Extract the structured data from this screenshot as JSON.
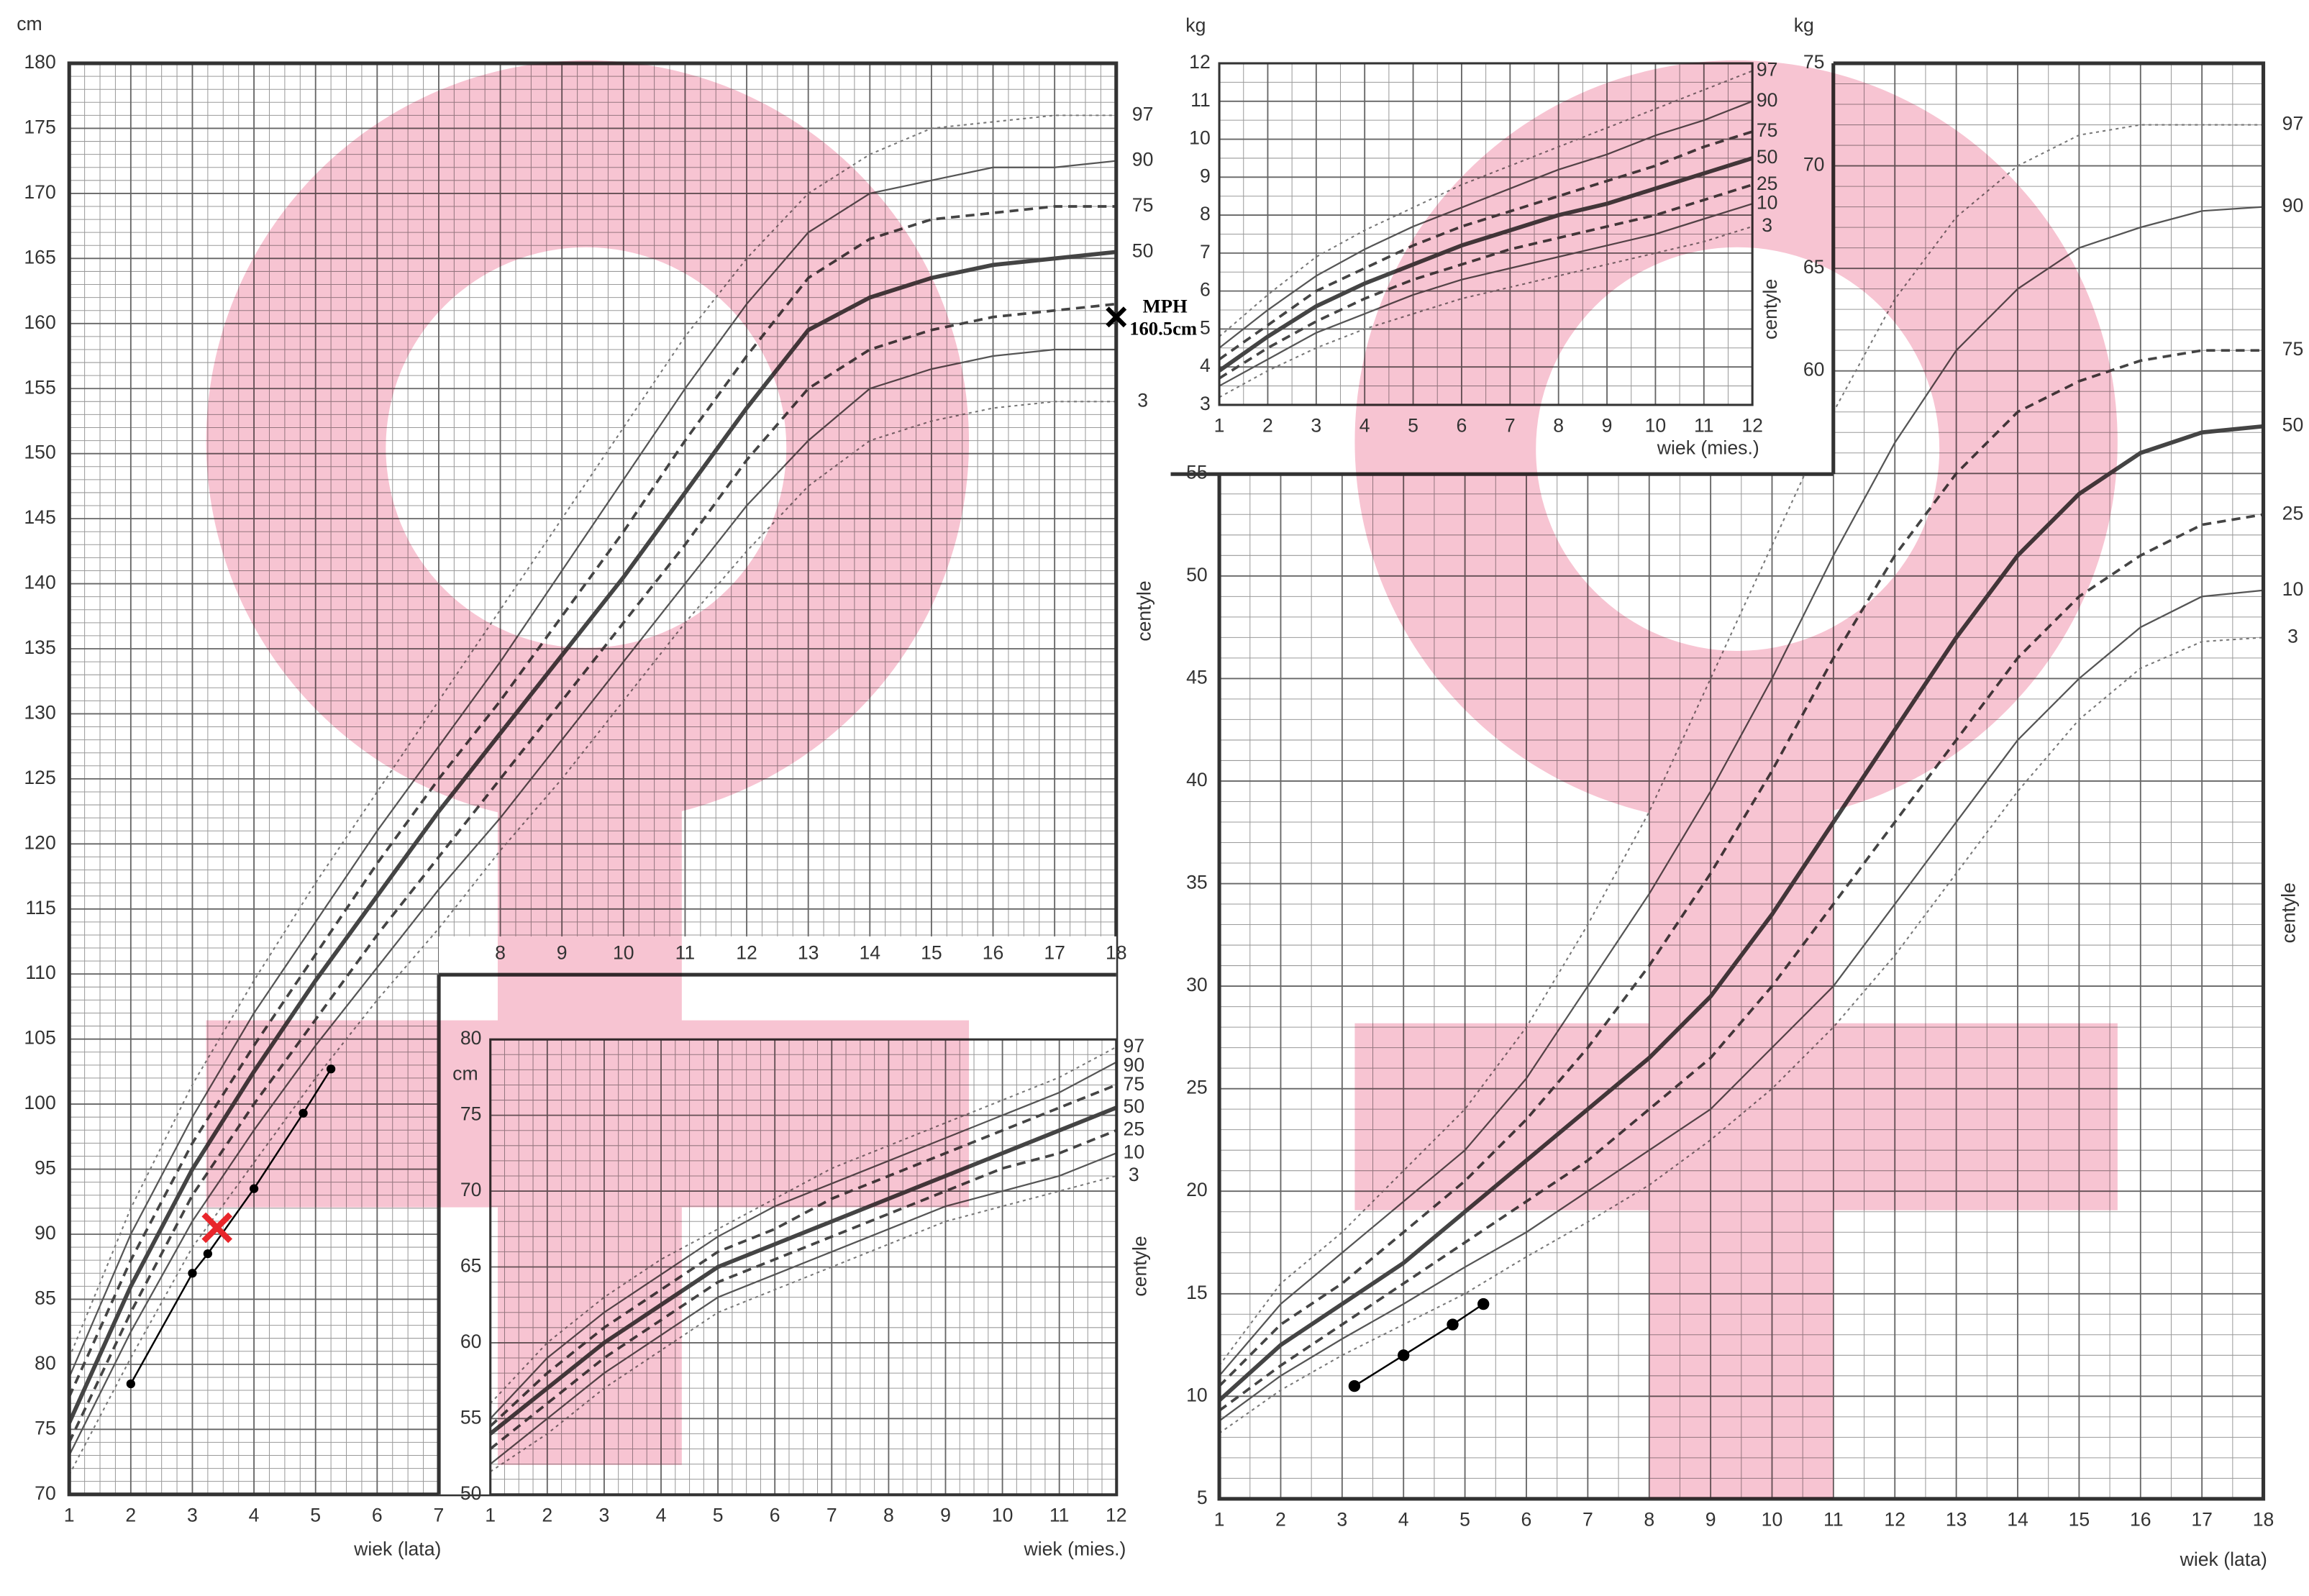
{
  "chart_data": [
    {
      "type": "line",
      "y_unit": "cm",
      "x_label": "wiek (lata)",
      "side_label": "centyle",
      "xlim": [
        1,
        18
      ],
      "ylim": [
        70,
        180
      ],
      "xticks": [
        1,
        2,
        3,
        4,
        5,
        6,
        7,
        8,
        9,
        10,
        11,
        12,
        13,
        14,
        15,
        16,
        17,
        18
      ],
      "yticks": [
        70,
        75,
        80,
        85,
        90,
        95,
        100,
        105,
        110,
        115,
        120,
        125,
        130,
        135,
        140,
        145,
        150,
        155,
        160,
        165,
        170,
        175,
        180
      ],
      "grid": true,
      "x": [
        1,
        2,
        3,
        4,
        5,
        6,
        7,
        8,
        9,
        10,
        11,
        12,
        13,
        14,
        15,
        16,
        17,
        18
      ],
      "series": [
        {
          "name": "97",
          "style": "dotted",
          "color": "#777",
          "values": [
            80.5,
            92,
            101.5,
            109.5,
            117,
            124,
            131,
            138,
            145,
            152,
            159,
            165,
            170,
            173,
            175,
            175.5,
            176,
            176
          ]
        },
        {
          "name": "90",
          "style": "solid",
          "color": "#555",
          "values": [
            79,
            90,
            99,
            107,
            114,
            121,
            127.5,
            134,
            141,
            148,
            155,
            161.5,
            167,
            170,
            171,
            172,
            172,
            172.5
          ]
        },
        {
          "name": "75",
          "style": "dashed",
          "color": "#444",
          "values": [
            77.5,
            88,
            97,
            104.5,
            111.5,
            118.5,
            125,
            131,
            137.5,
            144,
            151,
            157.5,
            163.5,
            166.5,
            168,
            168.5,
            169,
            169
          ]
        },
        {
          "name": "50",
          "style": "bold",
          "color": "#444",
          "values": [
            75.5,
            86,
            95,
            102.5,
            109.5,
            116,
            122.5,
            128.5,
            134.5,
            140.5,
            147,
            153.5,
            159.5,
            162,
            163.5,
            164.5,
            165,
            165.5
          ]
        },
        {
          "style": "dashed",
          "color": "#444",
          "values": [
            74,
            84,
            93,
            100,
            106.5,
            113,
            119,
            125,
            131,
            137,
            143,
            149.5,
            155,
            158,
            159.5,
            160.5,
            161,
            161.5
          ]
        },
        {
          "style": "solid",
          "color": "#555",
          "values": [
            73,
            82.5,
            91,
            98,
            104.5,
            110.5,
            116.5,
            122,
            128,
            134,
            140,
            146,
            151,
            155,
            156.5,
            157.5,
            158,
            158
          ]
        },
        {
          "name": "3",
          "style": "dotted",
          "color": "#777",
          "values": [
            71.5,
            80.5,
            89,
            95.5,
            102,
            108,
            113.5,
            119.5,
            125,
            131,
            137,
            142.5,
            147.5,
            151,
            152.5,
            153.5,
            154,
            154
          ]
        }
      ],
      "patient": {
        "color": "#000",
        "x": [
          2,
          3,
          3.25,
          4,
          4.8,
          5.25
        ],
        "values": [
          78.5,
          87,
          88.5,
          93.5,
          99.3,
          102.7
        ]
      },
      "markers": [
        {
          "x": 3.4,
          "y": 90.5,
          "color": "#e8262b"
        },
        {
          "x": 18,
          "y": 160.5,
          "color": "#000",
          "label": "MPH",
          "value_label": "160.5cm"
        }
      ]
    },
    {
      "type": "line",
      "y_unit": "cm",
      "x_label": "wiek (mies.)",
      "side_label": "centyle",
      "xlim": [
        1,
        12
      ],
      "ylim": [
        50,
        80
      ],
      "xticks": [
        1,
        2,
        3,
        4,
        5,
        6,
        7,
        8,
        9,
        10,
        11,
        12
      ],
      "yticks": [
        50,
        55,
        60,
        65,
        70,
        75,
        80
      ],
      "grid": true,
      "x": [
        1,
        2,
        3,
        4,
        5,
        6,
        7,
        8,
        9,
        10,
        11,
        12
      ],
      "series": [
        {
          "name": "97",
          "style": "dotted",
          "color": "#777",
          "values": [
            56,
            60,
            63,
            65.5,
            67.5,
            69.5,
            71.5,
            73,
            74.5,
            76,
            77.5,
            79.5
          ]
        },
        {
          "name": "90",
          "style": "solid",
          "color": "#555",
          "values": [
            55,
            59,
            62,
            64.5,
            67,
            69,
            70.5,
            72,
            73.5,
            75,
            76.5,
            78.5
          ]
        },
        {
          "name": "75",
          "style": "dashed",
          "color": "#444",
          "values": [
            54.5,
            58,
            61,
            63.5,
            66,
            67.5,
            69.5,
            71,
            72.5,
            74,
            75.5,
            77
          ]
        },
        {
          "name": "50",
          "style": "bold",
          "color": "#444",
          "values": [
            54,
            57,
            60,
            62.5,
            65,
            66.5,
            68,
            69.5,
            71,
            72.5,
            74,
            75.5
          ]
        },
        {
          "name": "25",
          "style": "dashed",
          "color": "#444",
          "values": [
            53,
            56,
            59,
            61.5,
            64,
            65.5,
            67,
            68.5,
            70,
            71.5,
            72.5,
            74
          ]
        },
        {
          "name": "10",
          "style": "solid",
          "color": "#555",
          "values": [
            52,
            55,
            58,
            60.5,
            63,
            64.5,
            66,
            67.5,
            69,
            70,
            71,
            72.5
          ]
        },
        {
          "name": "3",
          "style": "dotted",
          "color": "#777",
          "values": [
            51.5,
            54,
            57,
            59.5,
            62,
            63.5,
            65,
            66.5,
            68,
            69,
            70,
            71
          ]
        }
      ]
    },
    {
      "type": "line",
      "y_unit": "kg",
      "x_label": "wiek (lata)",
      "side_label": "centyle",
      "xlim": [
        1,
        18
      ],
      "ylim": [
        5,
        75
      ],
      "xticks": [
        1,
        2,
        3,
        4,
        5,
        6,
        7,
        8,
        9,
        10,
        11,
        12,
        13,
        14,
        15,
        16,
        17,
        18
      ],
      "yticks": [
        5,
        10,
        15,
        20,
        25,
        30,
        35,
        40,
        45,
        50,
        55,
        60,
        65,
        70,
        75
      ],
      "grid": true,
      "x": [
        1,
        2,
        3,
        4,
        5,
        6,
        7,
        8,
        9,
        10,
        11,
        12,
        13,
        14,
        15,
        16,
        17,
        18
      ],
      "series": [
        {
          "name": "97",
          "style": "dotted",
          "color": "#777",
          "values": [
            11.5,
            15.5,
            18,
            21,
            24,
            28,
            33,
            38.5,
            45,
            51.5,
            58,
            63.5,
            67.5,
            70,
            71.5,
            72,
            72,
            72
          ]
        },
        {
          "name": "90",
          "style": "solid",
          "color": "#555",
          "values": [
            11,
            14.5,
            17,
            19.5,
            22,
            25.5,
            30,
            34.5,
            39.5,
            45,
            51,
            56.5,
            61,
            64,
            66,
            67,
            67.8,
            68
          ]
        },
        {
          "name": "75",
          "style": "dashed",
          "color": "#444",
          "values": [
            10.5,
            13.5,
            15.5,
            18,
            20.5,
            23.5,
            27,
            31,
            35.5,
            40.5,
            46,
            51,
            55,
            58,
            59.5,
            60.5,
            61,
            61
          ]
        },
        {
          "name": "50",
          "style": "bold",
          "color": "#444",
          "values": [
            9.8,
            12.5,
            14.5,
            16.5,
            19,
            21.5,
            24,
            26.5,
            29.5,
            33.5,
            38,
            42.5,
            47,
            51,
            54,
            56,
            57,
            57.3
          ]
        },
        {
          "name": "25",
          "style": "dashed",
          "color": "#444",
          "values": [
            9.3,
            11.5,
            13.5,
            15.5,
            17.5,
            19.5,
            21.5,
            24,
            26.5,
            30,
            34,
            38,
            42,
            46,
            49,
            51,
            52.5,
            53
          ]
        },
        {
          "name": "10",
          "style": "solid",
          "color": "#555",
          "values": [
            8.8,
            11,
            12.8,
            14.5,
            16.3,
            18,
            20,
            22,
            24,
            27,
            30,
            34,
            38,
            42,
            45,
            47.5,
            49,
            49.3
          ]
        },
        {
          "name": "3",
          "style": "dotted",
          "color": "#777",
          "values": [
            8.2,
            10.3,
            12,
            13.5,
            15,
            16.8,
            18.5,
            20.3,
            22.5,
            25,
            28,
            31.5,
            35.5,
            39.5,
            43,
            45.5,
            46.8,
            47
          ]
        }
      ],
      "patient": {
        "color": "#000",
        "x": [
          3.2,
          4,
          4.8,
          5.3
        ],
        "values": [
          10.5,
          12,
          13.5,
          14.5
        ]
      }
    },
    {
      "type": "line",
      "y_unit": "kg",
      "x_label": "wiek (mies.)",
      "side_label": "centyle",
      "xlim": [
        1,
        12
      ],
      "ylim": [
        3,
        12
      ],
      "xticks": [
        1,
        2,
        3,
        4,
        5,
        6,
        7,
        8,
        9,
        10,
        11,
        12
      ],
      "yticks": [
        3,
        4,
        5,
        6,
        7,
        8,
        9,
        10,
        11,
        12
      ],
      "grid": true,
      "x": [
        1,
        2,
        3,
        4,
        5,
        6,
        7,
        8,
        9,
        10,
        11,
        12
      ],
      "series": [
        {
          "name": "97",
          "style": "dotted",
          "color": "#777",
          "values": [
            4.8,
            5.9,
            6.9,
            7.6,
            8.2,
            8.8,
            9.3,
            9.8,
            10.3,
            10.8,
            11.3,
            11.8
          ]
        },
        {
          "name": "90",
          "style": "solid",
          "color": "#555",
          "values": [
            4.5,
            5.5,
            6.4,
            7.1,
            7.7,
            8.2,
            8.7,
            9.2,
            9.6,
            10.1,
            10.5,
            11
          ]
        },
        {
          "name": "75",
          "style": "dashed",
          "color": "#444",
          "values": [
            4.2,
            5.1,
            6,
            6.6,
            7.2,
            7.7,
            8.1,
            8.5,
            8.9,
            9.3,
            9.8,
            10.2
          ]
        },
        {
          "name": "50",
          "style": "bold",
          "color": "#444",
          "values": [
            3.9,
            4.8,
            5.6,
            6.2,
            6.7,
            7.2,
            7.6,
            8,
            8.3,
            8.7,
            9.1,
            9.5
          ]
        },
        {
          "name": "25",
          "style": "dashed",
          "color": "#444",
          "values": [
            3.7,
            4.5,
            5.2,
            5.8,
            6.3,
            6.7,
            7.1,
            7.4,
            7.7,
            8,
            8.4,
            8.8
          ]
        },
        {
          "name": "10",
          "style": "solid",
          "color": "#555",
          "values": [
            3.5,
            4.2,
            4.9,
            5.4,
            5.9,
            6.3,
            6.6,
            6.9,
            7.2,
            7.5,
            7.9,
            8.3
          ]
        },
        {
          "name": "3",
          "style": "dotted",
          "color": "#777",
          "values": [
            3.2,
            3.9,
            4.5,
            5,
            5.4,
            5.8,
            6.1,
            6.4,
            6.7,
            7,
            7.3,
            7.7
          ]
        }
      ]
    }
  ]
}
